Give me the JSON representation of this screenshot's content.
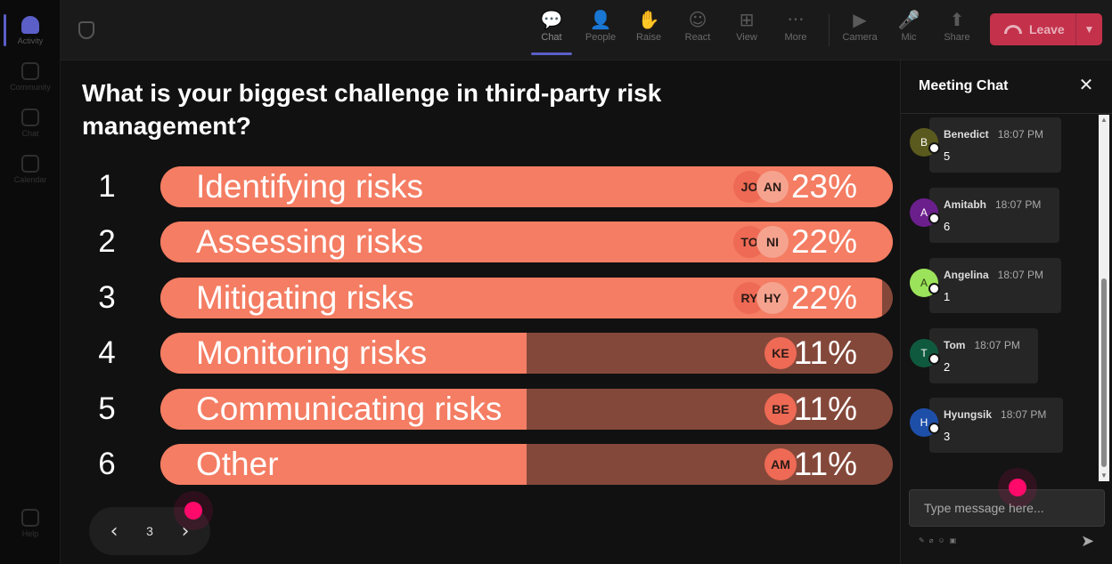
{
  "rail": [
    {
      "label": "Activity",
      "active": true
    },
    {
      "label": "Community",
      "active": false
    },
    {
      "label": "Chat",
      "active": false
    },
    {
      "label": "Calendar",
      "active": false
    },
    {
      "label": "Help",
      "active": false
    }
  ],
  "toolbar": {
    "buttons": [
      {
        "label": "Chat",
        "icon": "chat-icon",
        "glyph": "💬"
      },
      {
        "label": "People",
        "icon": "people-icon",
        "glyph": "👤"
      },
      {
        "label": "Raise",
        "icon": "raise-hand-icon",
        "glyph": "✋"
      },
      {
        "label": "React",
        "icon": "react-icon",
        "glyph": "☺"
      },
      {
        "label": "View",
        "icon": "view-grid-icon",
        "glyph": "⊞"
      },
      {
        "label": "More",
        "icon": "more-icon",
        "glyph": "···"
      },
      {
        "label": "Camera",
        "icon": "camera-off-icon",
        "glyph": "▶"
      },
      {
        "label": "Mic",
        "icon": "mic-icon",
        "glyph": "🎤"
      },
      {
        "label": "Share",
        "icon": "share-icon",
        "glyph": "⬆"
      }
    ],
    "leave_label": "Leave",
    "leave_color": "#c4314b",
    "accent": "#5b5fc7"
  },
  "poll": {
    "question": "What is your biggest challenge in third-party risk management?",
    "fill_color": "#f47d63",
    "track_color": "#84483a",
    "options": [
      {
        "num": "1",
        "label": "Identifying risks",
        "percent": "23%",
        "fill": 1.0,
        "avatars": [
          "JO",
          "AN"
        ]
      },
      {
        "num": "2",
        "label": "Assessing risks",
        "percent": "22%",
        "fill": 1.0,
        "avatars": [
          "TO",
          "NI"
        ]
      },
      {
        "num": "3",
        "label": "Mitigating risks",
        "percent": "22%",
        "fill": 0.985,
        "avatars": [
          "RY",
          "HY"
        ]
      },
      {
        "num": "4",
        "label": "Monitoring risks",
        "percent": "11%",
        "fill": 0.5,
        "avatars": [
          "KE"
        ]
      },
      {
        "num": "5",
        "label": "Communicating risks",
        "percent": "11%",
        "fill": 0.5,
        "avatars": [
          "BE"
        ]
      },
      {
        "num": "6",
        "label": "Other",
        "percent": "11%",
        "fill": 0.5,
        "avatars": [
          "AM"
        ]
      }
    ],
    "page": "3"
  },
  "chat": {
    "title": "Meeting Chat",
    "messages": [
      {
        "initial": "B",
        "name": "Benedict",
        "time": "18:07 PM",
        "text": "5",
        "color": "#5a5a1e"
      },
      {
        "initial": "A",
        "name": "Amitabh",
        "time": "18:07 PM",
        "text": "6",
        "color": "#6b1f8c"
      },
      {
        "initial": "A",
        "name": "Angelina",
        "time": "18:07 PM",
        "text": "1",
        "color": "#9be35a"
      },
      {
        "initial": "T",
        "name": "Tom",
        "time": "18:07 PM",
        "text": "2",
        "color": "#0f5a3e"
      },
      {
        "initial": "H",
        "name": "Hyungsik",
        "time": "18:07 PM",
        "text": "3",
        "color": "#1e4fa8"
      }
    ],
    "placeholder": "Type message here..."
  }
}
